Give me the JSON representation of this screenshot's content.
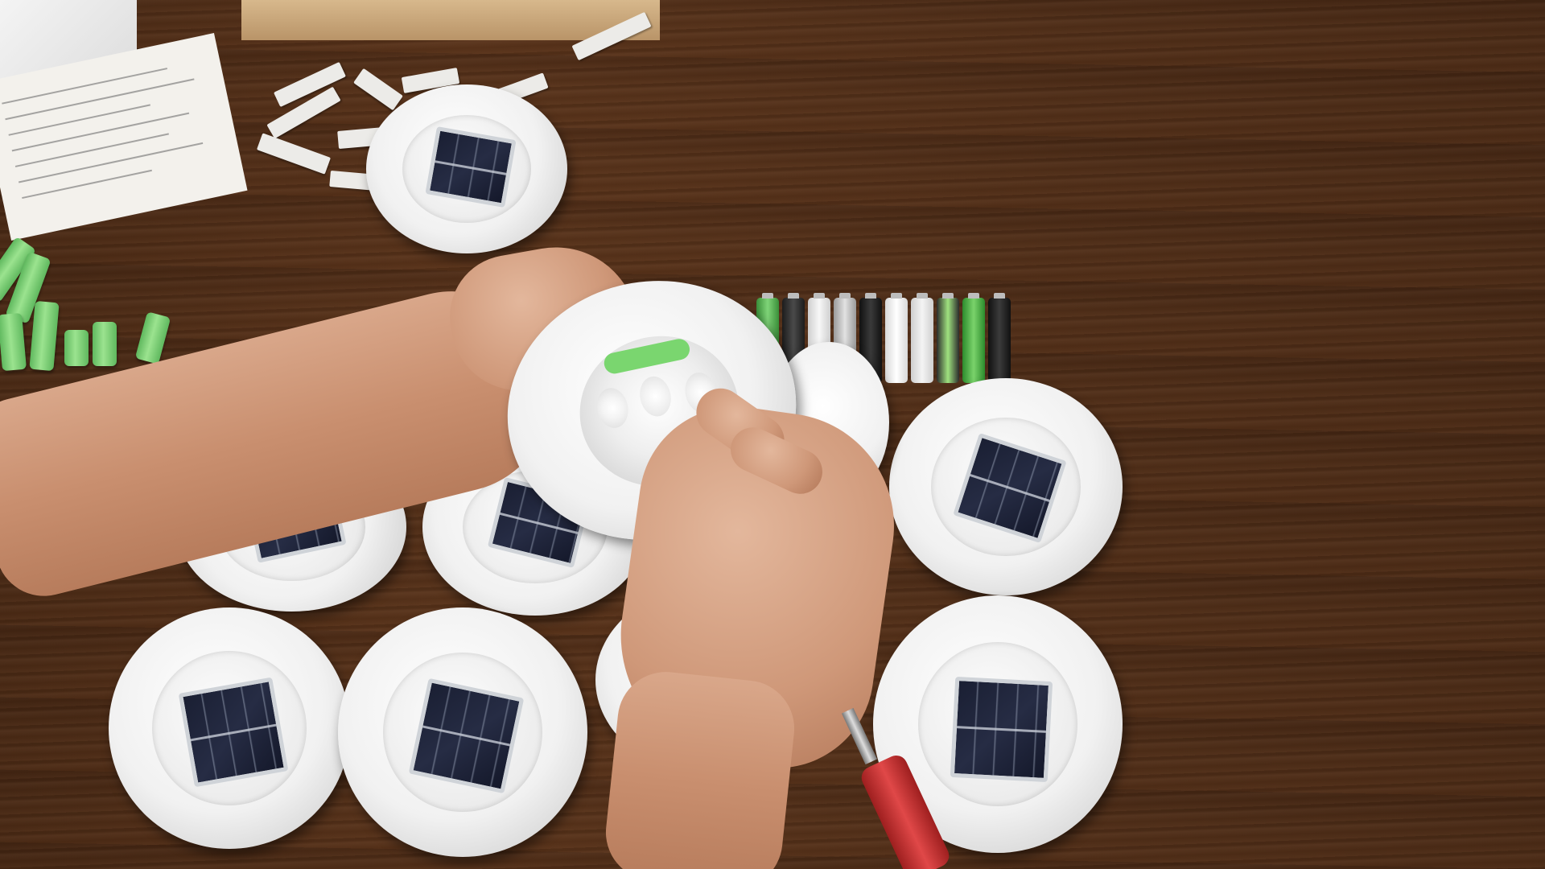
{
  "scene": {
    "subject": "",
    "colors": {
      "table": "#553019",
      "light_body": "#f0f0f0",
      "solar_panel": "#1e2338",
      "rechargeable_cell": "#7fd478",
      "skin": "#d6a082",
      "screwdriver_handle": "#d63a3a"
    }
  }
}
